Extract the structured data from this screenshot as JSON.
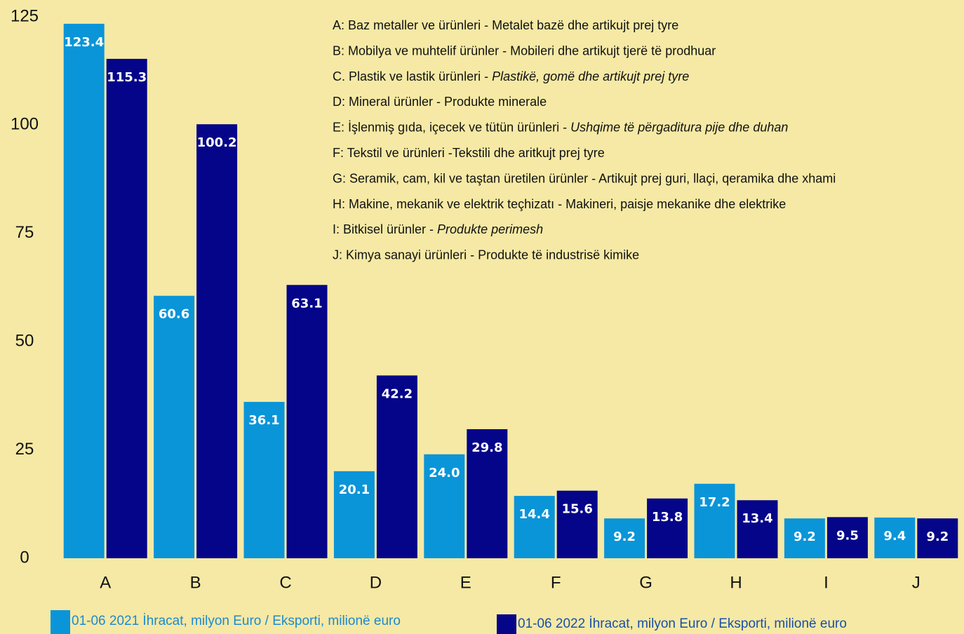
{
  "chart_data": {
    "type": "bar",
    "categories": [
      "A",
      "B",
      "C",
      "D",
      "E",
      "F",
      "G",
      "H",
      "I",
      "J"
    ],
    "series": [
      {
        "name": "01-06 2021 İhracat, milyon Euro / Eksporti, milionë euro",
        "color": "#0a95d8",
        "values": [
          123.4,
          60.6,
          36.1,
          20.1,
          24.0,
          14.4,
          9.2,
          17.2,
          9.2,
          9.4
        ],
        "value_labels": [
          "123.4",
          "60.6",
          "36.1",
          "20.1",
          "24.0",
          "14.4",
          "9.2",
          "17.2",
          "9.2",
          "9.4"
        ]
      },
      {
        "name": "01-06 2022 İhracat, milyon Euro / Eksporti, milionë euro",
        "color": "#05058a",
        "values": [
          115.3,
          100.2,
          63.1,
          42.2,
          29.8,
          15.6,
          13.8,
          13.4,
          9.5,
          9.2
        ],
        "value_labels": [
          "115.3",
          "100.2",
          "63.1",
          "42.2",
          "29.8",
          "15.6",
          "13.8",
          "13.4",
          "9.5",
          "9.2"
        ]
      }
    ],
    "annotations": [
      [
        "A: Baz metaller ve ürünleri - Metalet bazë dhe artikujt prej tyre"
      ],
      [
        "B: Mobilya ve muhtelif ürünler - Mobileri dhe artikujt tjerë të prodhuar"
      ],
      [
        "C. Plastik ve lastik ürünleri - ",
        "Plastikë, gomë dhe artikujt prej tyre"
      ],
      [
        "D: Mineral ürünler - Produkte minerale"
      ],
      [
        "E: İşlenmiş gıda, içecek ve tütün ürünleri - ",
        "Ushqime të përgaditura  pije dhe duhan"
      ],
      [
        "F: Tekstil ve ürünleri -Tekstili dhe aritkujt prej tyre"
      ],
      [
        "G: Seramik, cam, kil ve taştan üretilen ürünler - Artikujt prej guri, llaçi, qeramika dhe xhami"
      ],
      [
        "H: Makine, mekanik ve elektrik teçhizatı - Makineri, paisje mekanike dhe elektrike"
      ],
      [
        "I:  Bitkisel ürünler -  ",
        "Produkte perimesh"
      ],
      [
        "J: Kimya sanayi ürünleri - Produkte të industrisë kimike"
      ]
    ],
    "ylim": [
      0,
      125
    ],
    "yticks": [
      0,
      25,
      50,
      75,
      100,
      125
    ],
    "grid": false
  }
}
